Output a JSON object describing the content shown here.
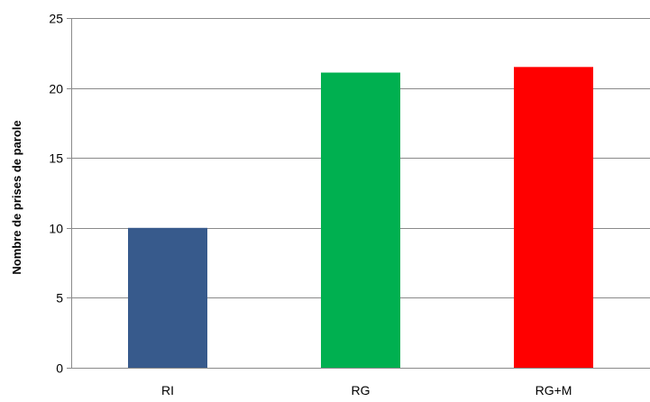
{
  "chart_data": {
    "type": "bar",
    "title": "",
    "xlabel": "",
    "ylabel": "Nombre de prises de parole",
    "categories": [
      "RI",
      "RG",
      "RG+M"
    ],
    "values": [
      10,
      21.1,
      21.5
    ],
    "colors": [
      "#375a8c",
      "#00b050",
      "#ff0000"
    ],
    "ylim": [
      0,
      25
    ],
    "yticks": [
      0,
      5,
      10,
      15,
      20,
      25
    ],
    "ytick_labels": [
      "0",
      "5",
      "10",
      "15",
      "20",
      "25"
    ],
    "grid": true,
    "legend": "none"
  }
}
